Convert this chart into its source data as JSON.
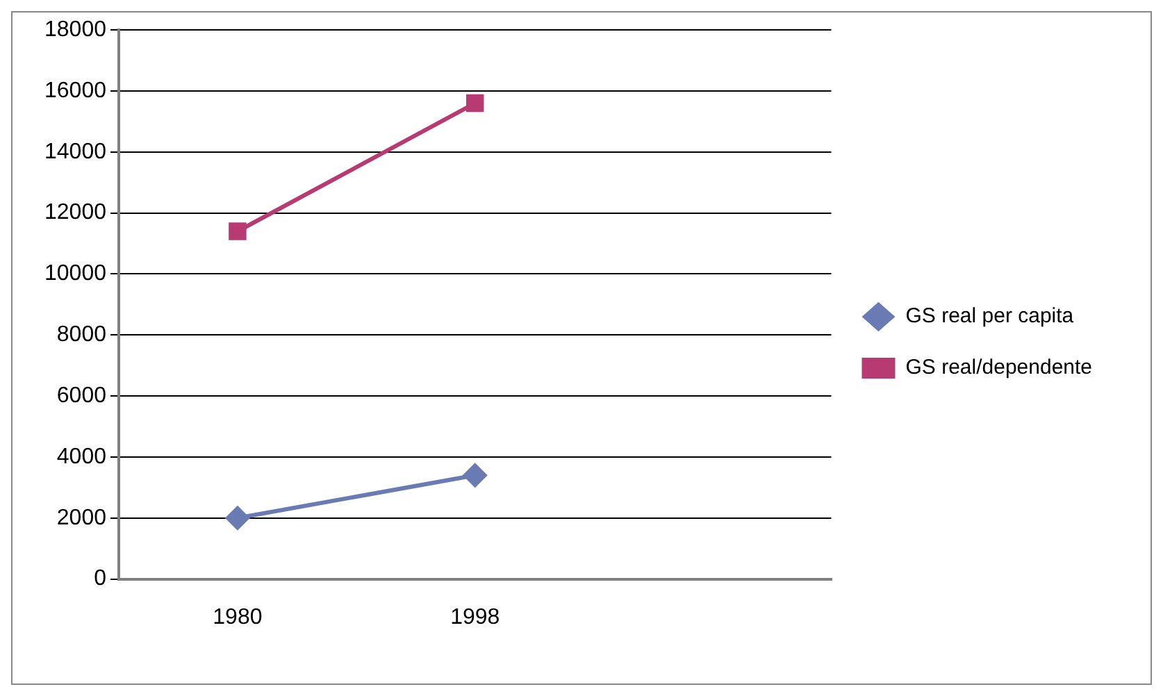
{
  "chart_data": {
    "type": "line",
    "categories": [
      "1980",
      "1998",
      null
    ],
    "series": [
      {
        "name": "GS real per capita",
        "color": "#6a7bb4",
        "values": [
          2000,
          3400,
          null
        ],
        "marker": "diamond"
      },
      {
        "name": "GS real/dependente",
        "color": "#b83a72",
        "values": [
          11400,
          15600,
          null
        ],
        "marker": "square"
      }
    ],
    "ylim": [
      0,
      18000
    ],
    "yticks": [
      0,
      2000,
      4000,
      6000,
      8000,
      10000,
      12000,
      14000,
      16000,
      18000
    ],
    "grid": "y",
    "legend": "right",
    "line_style": "solid"
  }
}
